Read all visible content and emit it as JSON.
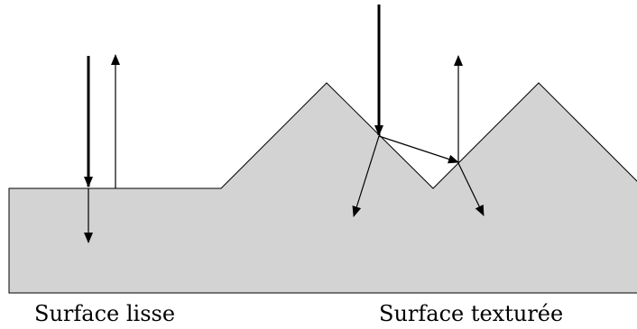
{
  "labels": {
    "smooth": "Surface lisse",
    "textured": "Surface texturée"
  },
  "colors": {
    "surface_fill": "#d3d3d3",
    "stroke": "#000000",
    "background": "#ffffff"
  },
  "arrows": {
    "incident": "thick",
    "reflected": "thin",
    "transmitted": "thin"
  }
}
